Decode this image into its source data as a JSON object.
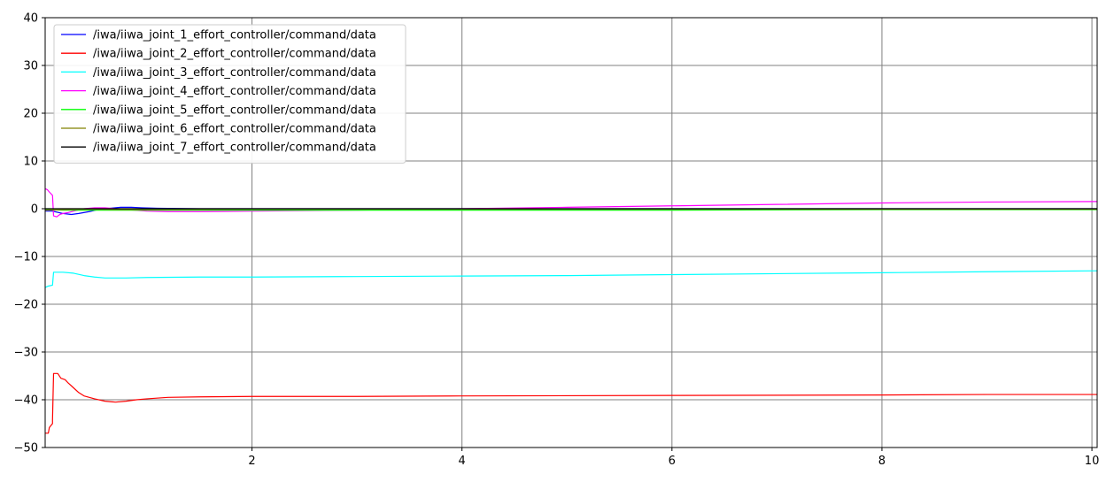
{
  "chart_data": {
    "type": "line",
    "title": "",
    "xlabel": "",
    "ylabel": "",
    "xlim": [
      0.03,
      10.05
    ],
    "ylim": [
      -50,
      40
    ],
    "grid": true,
    "legend_position": "top-left",
    "x_ticks": [
      2,
      4,
      6,
      8,
      10
    ],
    "y_ticks": [
      -50,
      -40,
      -30,
      -20,
      -10,
      0,
      10,
      20,
      30,
      40
    ],
    "x_tick_labels": [
      "2",
      "4",
      "6",
      "8",
      "10"
    ],
    "y_tick_labels": [
      "−50",
      "−40",
      "−30",
      "−20",
      "−10",
      "0",
      "10",
      "20",
      "30",
      "40"
    ],
    "series": [
      {
        "name": "/iwa/iiwa_joint_1_effort_controller/command/data",
        "color": "#0000ff",
        "points": [
          [
            0.03,
            -0.5
          ],
          [
            0.1,
            -0.5
          ],
          [
            0.12,
            -0.6
          ],
          [
            0.2,
            -1.0
          ],
          [
            0.28,
            -1.2
          ],
          [
            0.35,
            -1.0
          ],
          [
            0.45,
            -0.6
          ],
          [
            0.55,
            -0.1
          ],
          [
            0.65,
            0.1
          ],
          [
            0.75,
            0.3
          ],
          [
            0.85,
            0.3
          ],
          [
            0.95,
            0.2
          ],
          [
            1.1,
            0.1
          ],
          [
            1.5,
            0.0
          ],
          [
            3.0,
            0.0
          ],
          [
            6.0,
            0.0
          ],
          [
            10.05,
            0.0
          ]
        ]
      },
      {
        "name": "/iwa/iiwa_joint_2_effort_controller/command/data",
        "color": "#ff0000",
        "points": [
          [
            0.03,
            -47.0
          ],
          [
            0.06,
            -47.0
          ],
          [
            0.07,
            -45.8
          ],
          [
            0.1,
            -45.0
          ],
          [
            0.1,
            -44.2
          ],
          [
            0.11,
            -34.5
          ],
          [
            0.15,
            -34.5
          ],
          [
            0.18,
            -35.5
          ],
          [
            0.22,
            -35.8
          ],
          [
            0.25,
            -36.5
          ],
          [
            0.3,
            -37.5
          ],
          [
            0.35,
            -38.5
          ],
          [
            0.4,
            -39.2
          ],
          [
            0.5,
            -39.8
          ],
          [
            0.6,
            -40.3
          ],
          [
            0.7,
            -40.5
          ],
          [
            0.8,
            -40.3
          ],
          [
            0.9,
            -40.0
          ],
          [
            1.0,
            -39.8
          ],
          [
            1.2,
            -39.5
          ],
          [
            1.5,
            -39.4
          ],
          [
            2.0,
            -39.3
          ],
          [
            3.0,
            -39.3
          ],
          [
            4.0,
            -39.2
          ],
          [
            6.0,
            -39.1
          ],
          [
            8.0,
            -39.0
          ],
          [
            9.0,
            -38.9
          ],
          [
            10.05,
            -38.9
          ]
        ]
      },
      {
        "name": "/iwa/iiwa_joint_3_effort_controller/command/data",
        "color": "#00ffff",
        "points": [
          [
            0.03,
            -16.5
          ],
          [
            0.06,
            -16.2
          ],
          [
            0.1,
            -16.0
          ],
          [
            0.11,
            -13.3
          ],
          [
            0.2,
            -13.3
          ],
          [
            0.3,
            -13.5
          ],
          [
            0.4,
            -14.0
          ],
          [
            0.5,
            -14.3
          ],
          [
            0.6,
            -14.5
          ],
          [
            0.8,
            -14.5
          ],
          [
            1.0,
            -14.4
          ],
          [
            1.5,
            -14.3
          ],
          [
            2.0,
            -14.3
          ],
          [
            3.0,
            -14.2
          ],
          [
            4.0,
            -14.1
          ],
          [
            5.0,
            -14.0
          ],
          [
            6.0,
            -13.8
          ],
          [
            7.0,
            -13.6
          ],
          [
            8.0,
            -13.4
          ],
          [
            9.0,
            -13.2
          ],
          [
            10.05,
            -13.0
          ]
        ]
      },
      {
        "name": "/iwa/iiwa_joint_4_effort_controller/command/data",
        "color": "#ff00ff",
        "points": [
          [
            0.03,
            4.2
          ],
          [
            0.05,
            4.0
          ],
          [
            0.07,
            3.5
          ],
          [
            0.1,
            2.8
          ],
          [
            0.11,
            -1.5
          ],
          [
            0.14,
            -1.7
          ],
          [
            0.17,
            -1.2
          ],
          [
            0.2,
            -1.0
          ],
          [
            0.25,
            -0.8
          ],
          [
            0.3,
            -0.5
          ],
          [
            0.4,
            0.0
          ],
          [
            0.5,
            0.2
          ],
          [
            0.6,
            0.2
          ],
          [
            0.7,
            0.0
          ],
          [
            0.8,
            -0.2
          ],
          [
            1.0,
            -0.5
          ],
          [
            1.2,
            -0.6
          ],
          [
            1.5,
            -0.6
          ],
          [
            2.0,
            -0.5
          ],
          [
            3.0,
            -0.3
          ],
          [
            4.0,
            0.0
          ],
          [
            5.0,
            0.3
          ],
          [
            6.0,
            0.6
          ],
          [
            7.0,
            0.9
          ],
          [
            8.0,
            1.2
          ],
          [
            9.0,
            1.4
          ],
          [
            10.05,
            1.5
          ]
        ]
      },
      {
        "name": "/iwa/iiwa_joint_5_effort_controller/command/data",
        "color": "#00ff00",
        "points": [
          [
            0.03,
            -0.2
          ],
          [
            0.2,
            -0.3
          ],
          [
            0.5,
            -0.3
          ],
          [
            1.0,
            -0.3
          ],
          [
            2.0,
            -0.3
          ],
          [
            4.0,
            -0.3
          ],
          [
            6.0,
            -0.3
          ],
          [
            8.0,
            -0.2
          ],
          [
            10.05,
            -0.2
          ]
        ]
      },
      {
        "name": "/iwa/iiwa_joint_6_effort_controller/command/data",
        "color": "#808000",
        "points": [
          [
            0.03,
            -0.3
          ],
          [
            0.2,
            -0.2
          ],
          [
            0.5,
            -0.1
          ],
          [
            0.8,
            -0.2
          ],
          [
            1.0,
            -0.2
          ],
          [
            2.0,
            -0.1
          ],
          [
            4.0,
            -0.1
          ],
          [
            6.0,
            -0.1
          ],
          [
            8.0,
            -0.1
          ],
          [
            10.05,
            -0.1
          ]
        ]
      },
      {
        "name": "/iwa/iiwa_joint_7_effort_controller/command/data",
        "color": "#000000",
        "points": [
          [
            0.03,
            0.0
          ],
          [
            0.2,
            0.0
          ],
          [
            0.5,
            0.0
          ],
          [
            1.0,
            0.0
          ],
          [
            2.0,
            0.0
          ],
          [
            4.0,
            0.0
          ],
          [
            6.0,
            0.0
          ],
          [
            8.0,
            0.0
          ],
          [
            10.05,
            0.0
          ]
        ]
      }
    ]
  }
}
